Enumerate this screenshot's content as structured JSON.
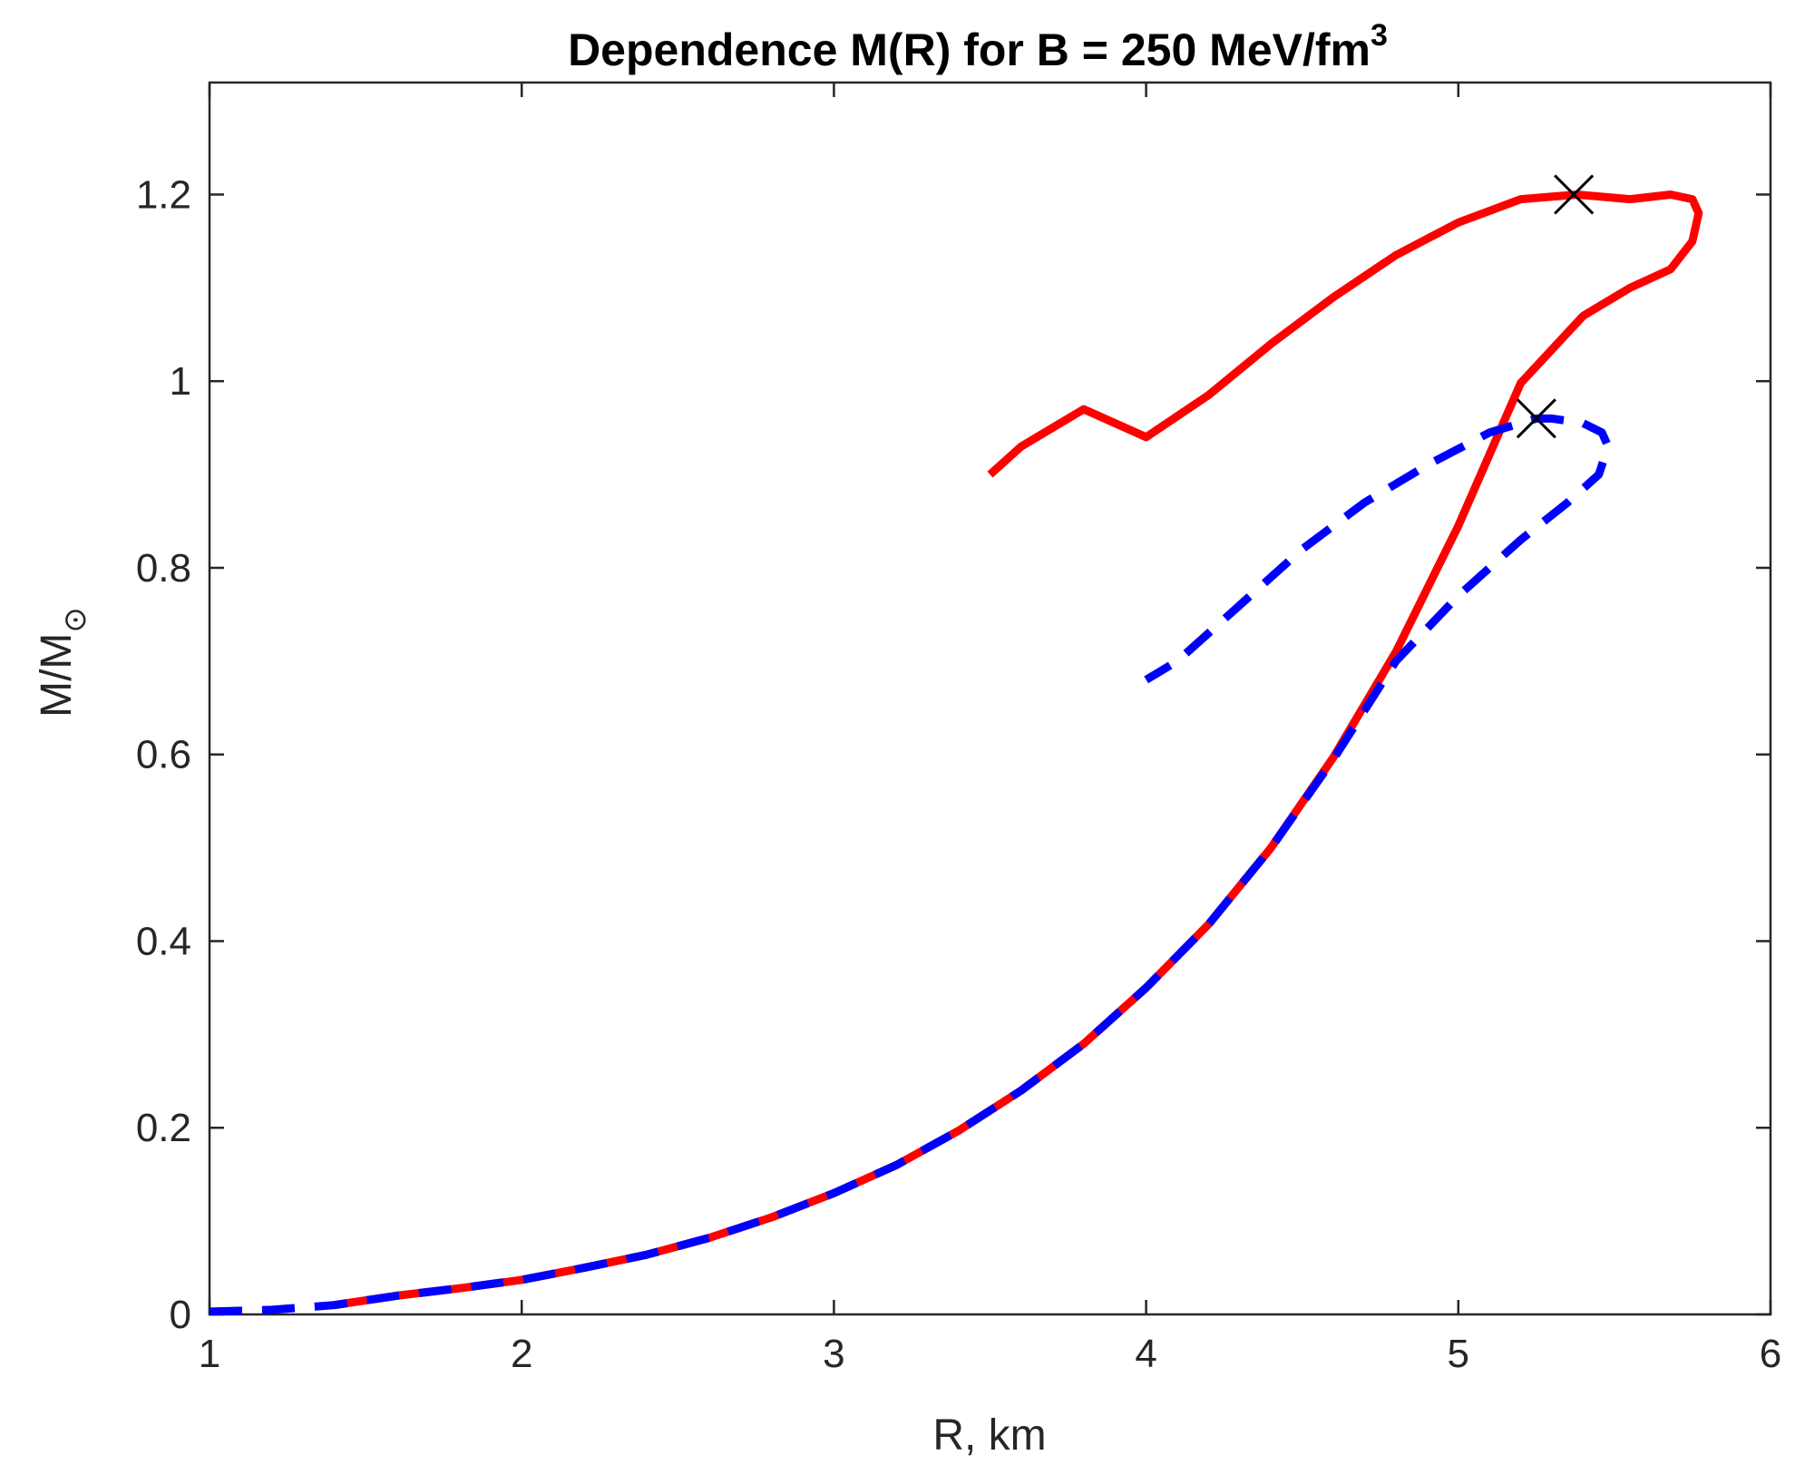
{
  "chart_data": {
    "type": "line",
    "title": "Dependence M(R) for B = 250 MeV/fm",
    "title_superscript": "3",
    "xlabel": "R, km",
    "ylabel": "M/M",
    "ylabel_subscript": "⊙",
    "xlim": [
      1,
      6
    ],
    "ylim": [
      0,
      1.32
    ],
    "xticks": [
      1,
      2,
      3,
      4,
      5,
      6
    ],
    "xtick_labels": [
      "1",
      "2",
      "3",
      "4",
      "5",
      "6"
    ],
    "yticks": [
      0,
      0.2,
      0.4,
      0.6,
      0.8,
      1.0,
      1.2
    ],
    "ytick_labels": [
      "0",
      "0.2",
      "0.4",
      "0.6",
      "0.8",
      "1",
      "1.2"
    ],
    "grid": false,
    "series": [
      {
        "name": "solid",
        "color": "#ff0000",
        "style": "solid",
        "x": [
          1.4,
          1.6,
          1.8,
          2.0,
          2.2,
          2.4,
          2.6,
          2.8,
          3.0,
          3.2,
          3.4,
          3.6,
          3.8,
          4.0,
          4.2,
          4.4,
          4.6,
          4.8,
          5.0,
          5.2,
          5.4,
          5.55,
          5.68,
          5.75,
          5.77,
          5.75,
          5.68,
          5.55,
          5.38,
          5.2,
          5.0,
          4.8,
          4.6,
          4.4,
          4.2,
          4.0,
          3.8,
          3.6,
          3.5
        ],
        "y": [
          0.01,
          0.02,
          0.028,
          0.037,
          0.05,
          0.064,
          0.082,
          0.104,
          0.13,
          0.16,
          0.197,
          0.24,
          0.29,
          0.35,
          0.418,
          0.5,
          0.597,
          0.71,
          0.845,
          0.998,
          1.07,
          1.1,
          1.12,
          1.15,
          1.18,
          1.195,
          1.2,
          1.195,
          1.2,
          1.195,
          1.17,
          1.135,
          1.09,
          1.04,
          0.985,
          0.94,
          0.97,
          0.93,
          0.9
        ]
      },
      {
        "name": "dashed",
        "color": "#0000ff",
        "style": "dashed",
        "x": [
          1.0,
          1.2,
          1.4,
          1.6,
          1.8,
          2.0,
          2.2,
          2.4,
          2.6,
          2.8,
          3.0,
          3.2,
          3.4,
          3.6,
          3.8,
          4.0,
          4.2,
          4.4,
          4.6,
          4.8,
          5.0,
          5.2,
          5.35,
          5.45,
          5.48,
          5.46,
          5.4,
          5.3,
          5.25,
          5.1,
          4.9,
          4.7,
          4.5,
          4.3,
          4.1,
          4.0
        ],
        "y": [
          0.003,
          0.005,
          0.01,
          0.02,
          0.028,
          0.037,
          0.05,
          0.064,
          0.082,
          0.104,
          0.13,
          0.16,
          0.197,
          0.24,
          0.29,
          0.35,
          0.418,
          0.5,
          0.595,
          0.7,
          0.77,
          0.83,
          0.87,
          0.9,
          0.93,
          0.945,
          0.955,
          0.96,
          0.96,
          0.945,
          0.91,
          0.87,
          0.82,
          0.76,
          0.7,
          0.68
        ]
      }
    ],
    "markers": [
      {
        "name": "max-solid",
        "x": 5.37,
        "y": 1.2,
        "symbol": "x",
        "color": "#000000"
      },
      {
        "name": "max-dashed",
        "x": 5.25,
        "y": 0.96,
        "symbol": "x",
        "color": "#000000"
      }
    ]
  }
}
